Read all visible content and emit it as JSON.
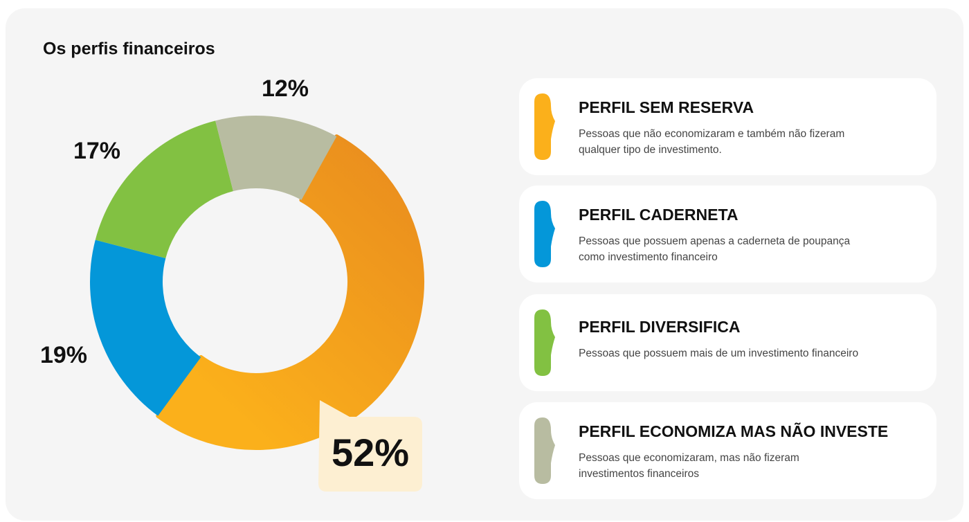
{
  "chart_data": {
    "type": "donut",
    "title": "Os perfis financeiros",
    "categories": [
      "PERFIL SEM RESERVA",
      "PERFIL CADERNETA",
      "PERFIL DIVERSIFICA",
      "PERFIL ECONOMIZA MAS NÃO INVESTE"
    ],
    "descriptions": [
      [
        "Pessoas que não economizaram e também não fizeram",
        "qualquer tipo de investimento."
      ],
      [
        "Pessoas que possuem apenas a caderneta de poupança",
        "como investimento financeiro"
      ],
      [
        "Pessoas que possuem mais de um investimento financeiro"
      ],
      [
        "Pessoas que economizaram, mas não fizeram",
        "investimentos financeiros"
      ]
    ],
    "values": [
      52,
      19,
      17,
      12
    ],
    "value_labels": [
      "52%",
      "19%",
      "17%",
      "12%"
    ],
    "colors": [
      "#fbb01b",
      "#0497d9",
      "#82c142",
      "#b8bca1"
    ]
  }
}
